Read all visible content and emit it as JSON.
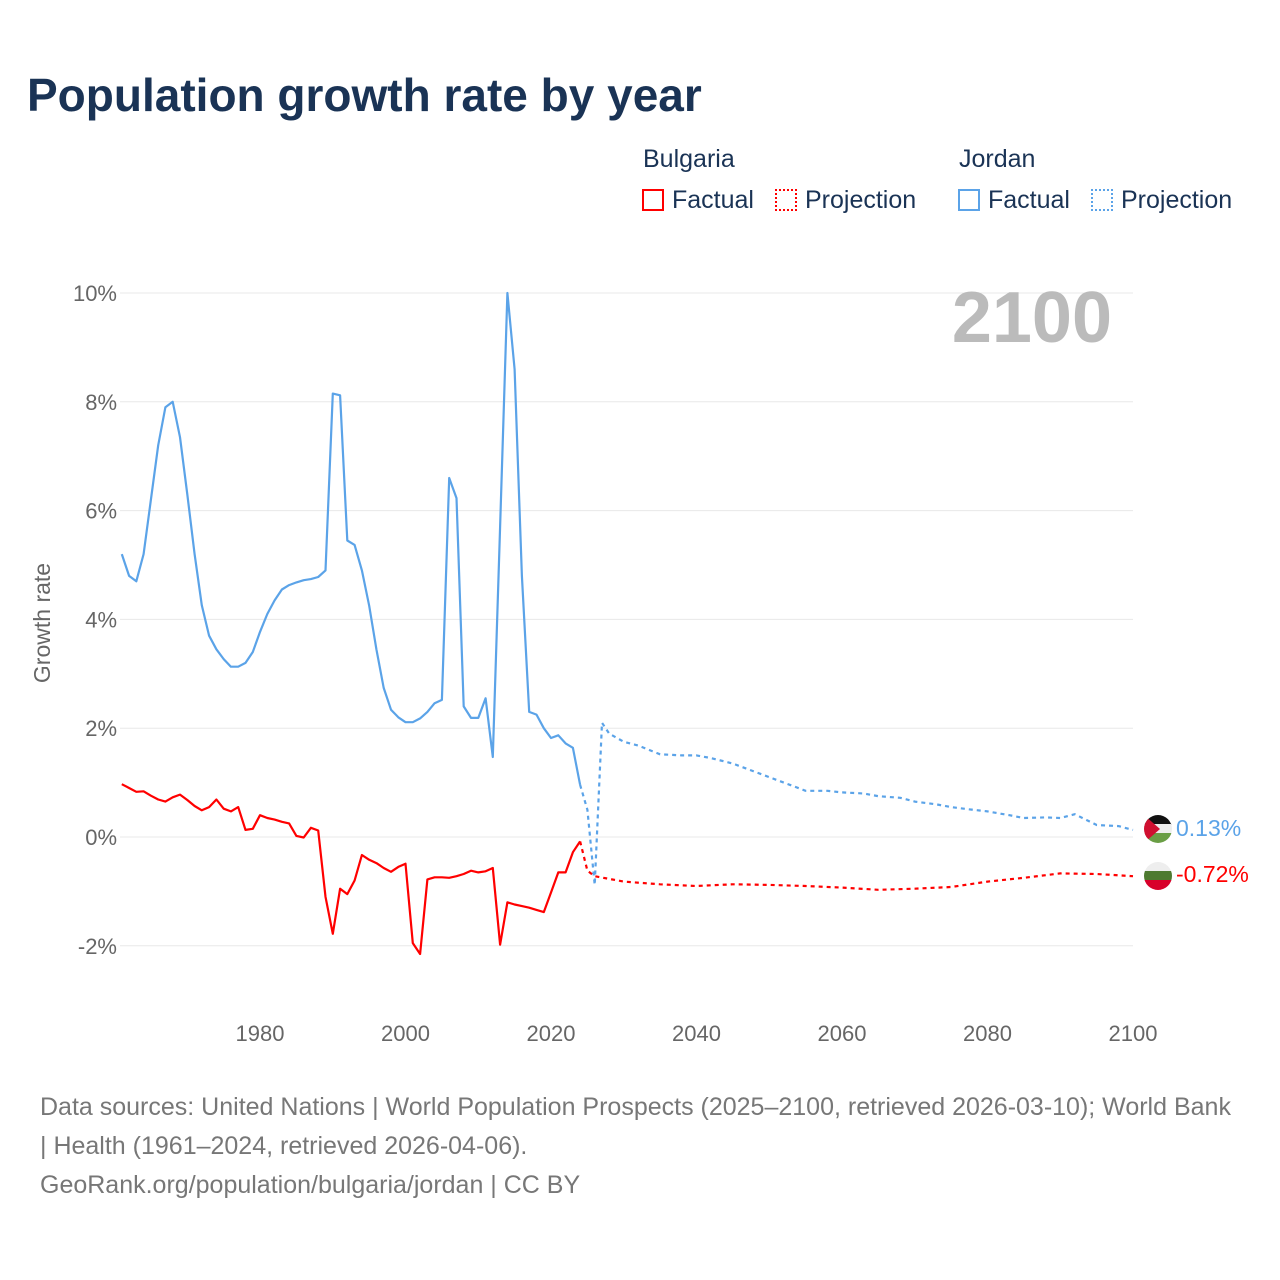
{
  "title": "Population growth rate by year",
  "legend": {
    "bulgaria": "Bulgaria",
    "jordan": "Jordan",
    "factual": "Factual",
    "projection": "Projection"
  },
  "colors": {
    "bulgaria": "#ff0000",
    "jordan": "#5ba3e8"
  },
  "year_label": "2100",
  "end_labels": {
    "jordan": "0.13%",
    "bulgaria": "-0.72%"
  },
  "footer": {
    "sources": "Data sources: United Nations | World Population Prospects (2025–2100, retrieved 2026-03-10); World Bank | Health (1961–2024, retrieved 2026-04-06).",
    "link": "GeoRank.org/population/bulgaria/jordan | CC BY"
  },
  "chart_data": {
    "type": "line",
    "title": "Population growth rate by year",
    "ylabel": "Growth rate",
    "xlim": [
      1961,
      2100
    ],
    "ylim": [
      -3,
      10.5
    ],
    "yticks": [
      {
        "v": -2,
        "label": "-2%"
      },
      {
        "v": 0,
        "label": "0%"
      },
      {
        "v": 2,
        "label": "2%"
      },
      {
        "v": 4,
        "label": "4%"
      },
      {
        "v": 6,
        "label": "6%"
      },
      {
        "v": 8,
        "label": "8%"
      },
      {
        "v": 10,
        "label": "10%"
      }
    ],
    "xticks": [
      {
        "v": 1980,
        "label": "1980"
      },
      {
        "v": 2000,
        "label": "2000"
      },
      {
        "v": 2020,
        "label": "2020"
      },
      {
        "v": 2040,
        "label": "2040"
      },
      {
        "v": 2060,
        "label": "2060"
      },
      {
        "v": 2080,
        "label": "2080"
      },
      {
        "v": 2100,
        "label": "2100"
      }
    ],
    "series": [
      {
        "name": "Jordan Factual",
        "key": "jordan",
        "dashed": false,
        "start": 1961,
        "values": [
          5.2,
          4.8,
          4.7,
          5.2,
          6.2,
          7.2,
          7.9,
          8.0,
          7.35,
          6.3,
          5.2,
          4.26,
          3.7,
          3.45,
          3.27,
          3.13,
          3.13,
          3.2,
          3.4,
          3.77,
          4.1,
          4.35,
          4.55,
          4.63,
          4.68,
          4.72,
          4.74,
          4.78,
          4.9,
          8.15,
          8.12,
          5.45,
          5.37,
          4.9,
          4.25,
          3.45,
          2.74,
          2.34,
          2.2,
          2.11,
          2.11,
          2.18,
          2.3,
          2.46,
          2.52,
          6.6,
          6.23,
          2.4,
          2.19,
          2.19,
          2.55,
          1.47,
          5.7,
          10.0,
          8.6,
          4.8,
          2.3,
          2.25,
          2.0,
          1.82,
          1.87,
          1.72,
          1.64,
          0.96
        ]
      },
      {
        "name": "Jordan Projection",
        "key": "jordan",
        "dashed": true,
        "x": [
          2024,
          2025,
          2026,
          2027,
          2028,
          2030,
          2032,
          2035,
          2038,
          2040,
          2042,
          2045,
          2048,
          2050,
          2053,
          2055,
          2058,
          2060,
          2063,
          2065,
          2068,
          2070,
          2073,
          2075,
          2078,
          2080,
          2083,
          2085,
          2088,
          2090,
          2092,
          2095,
          2098,
          2100
        ],
        "values": [
          0.96,
          0.5,
          -0.88,
          2.1,
          1.9,
          1.75,
          1.68,
          1.52,
          1.5,
          1.5,
          1.45,
          1.35,
          1.2,
          1.1,
          0.95,
          0.85,
          0.85,
          0.82,
          0.8,
          0.75,
          0.72,
          0.65,
          0.6,
          0.55,
          0.5,
          0.47,
          0.4,
          0.35,
          0.36,
          0.35,
          0.42,
          0.22,
          0.2,
          0.13
        ]
      },
      {
        "name": "Bulgaria Factual",
        "key": "bulgaria",
        "dashed": false,
        "start": 1961,
        "values": [
          0.97,
          0.9,
          0.83,
          0.84,
          0.76,
          0.69,
          0.65,
          0.73,
          0.78,
          0.68,
          0.57,
          0.49,
          0.55,
          0.69,
          0.52,
          0.47,
          0.55,
          0.13,
          0.15,
          0.4,
          0.35,
          0.32,
          0.28,
          0.25,
          0.02,
          -0.01,
          0.17,
          0.12,
          -1.1,
          -1.78,
          -0.95,
          -1.05,
          -0.8,
          -0.33,
          -0.42,
          -0.48,
          -0.57,
          -0.64,
          -0.55,
          -0.49,
          -1.95,
          -2.15,
          -0.78,
          -0.74,
          -0.74,
          -0.75,
          -0.72,
          -0.68,
          -0.62,
          -0.65,
          -0.63,
          -0.57,
          -1.98,
          -1.2,
          -1.24,
          -1.27,
          -1.3,
          -1.34,
          -1.38,
          -1.02,
          -0.65,
          -0.65,
          -0.28,
          -0.08
        ]
      },
      {
        "name": "Bulgaria Projection",
        "key": "bulgaria",
        "dashed": true,
        "x": [
          2024,
          2025,
          2026,
          2030,
          2035,
          2040,
          2045,
          2050,
          2055,
          2060,
          2065,
          2070,
          2075,
          2080,
          2085,
          2090,
          2095,
          2100
        ],
        "values": [
          -0.08,
          -0.62,
          -0.72,
          -0.82,
          -0.87,
          -0.9,
          -0.87,
          -0.88,
          -0.9,
          -0.93,
          -0.97,
          -0.95,
          -0.92,
          -0.82,
          -0.75,
          -0.67,
          -0.68,
          -0.72
        ]
      }
    ]
  }
}
